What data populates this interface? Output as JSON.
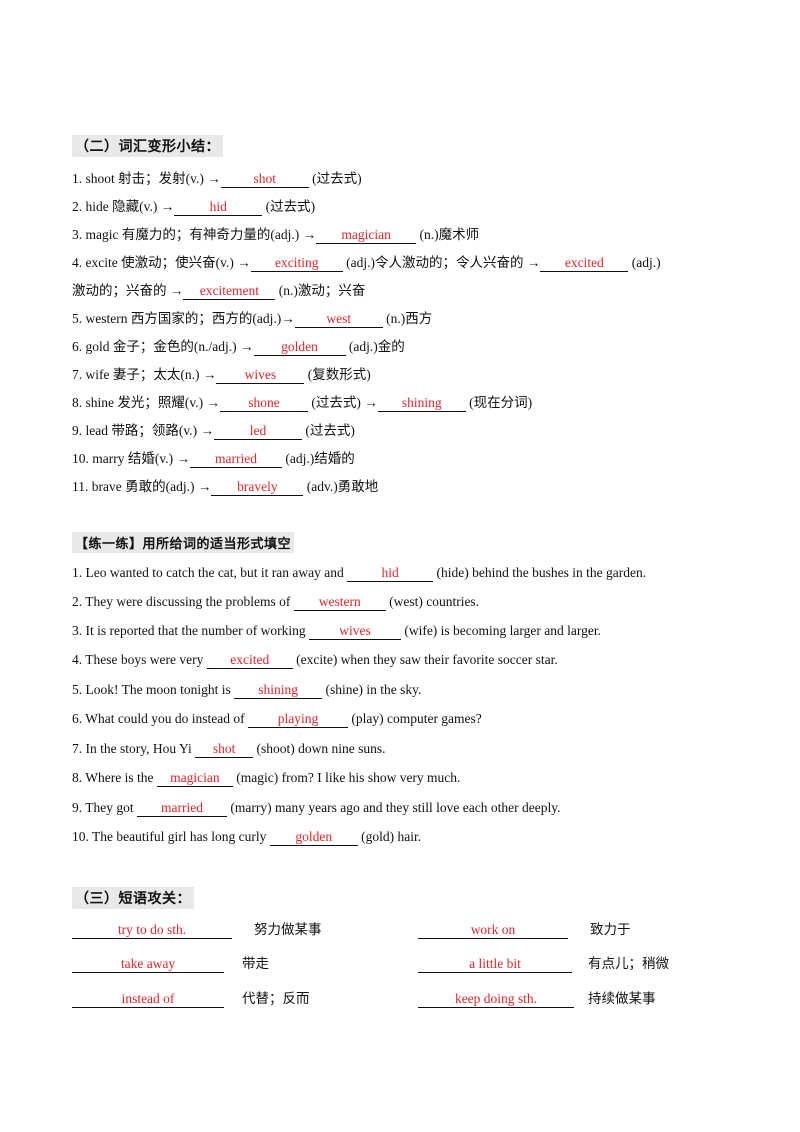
{
  "section2": {
    "title": "（二）词汇变形小结：",
    "items": [
      {
        "pre": "1.   shoot   射击；发射(v.)  →",
        "a1": "shot",
        "mid": "",
        "a2": "",
        "post": "  (过去式)"
      },
      {
        "pre": "2.   hide   隐藏(v.)  →",
        "a1": "hid",
        "mid": "",
        "a2": "",
        "post": "  (过去式)"
      },
      {
        "pre": "3.   magic  有魔力的；有神奇力量的(adj.)  →",
        "a1": "magician",
        "mid": "",
        "a2": "",
        "post": "  (n.)魔术师"
      },
      {
        "pre": "4.   excite  使激动；使兴奋(v.)  →",
        "a1": "exciting",
        "mid": "  (adj.)令人激动的；令人兴奋的  →",
        "a2": "excited",
        "post": "  (adj.)"
      },
      {
        "pre": "激动的；兴奋的  →",
        "a1": "excitement",
        "mid": "",
        "a2": "",
        "post": "  (n.)激动；兴奋"
      },
      {
        "pre": "5.  western  西方国家的；西方的(adj.)→",
        "a1": "west",
        "mid": "",
        "a2": "",
        "post": "  (n.)西方"
      },
      {
        "pre": "6.  gold  金子；金色的(n./adj.)  →",
        "a1": "golden",
        "mid": "",
        "a2": "",
        "post": "  (adj.)金的"
      },
      {
        "pre": "7.  wife  妻子；太太(n.)  →",
        "a1": "wives",
        "mid": "",
        "a2": "",
        "post": "  (复数形式)"
      },
      {
        "pre": "8.  shine  发光；照耀(v.)  →",
        "a1": "shone",
        "mid": "  (过去式)  →",
        "a2": "shining",
        "post": "  (现在分词)"
      },
      {
        "pre": "9.  lead  带路；领路(v.)  →",
        "a1": "led",
        "mid": "",
        "a2": "",
        "post": "  (过去式)"
      },
      {
        "pre": "10.  marry  结婚(v.)  →",
        "a1": "married",
        "mid": "",
        "a2": "",
        "post": "  (adj.)结婚的"
      },
      {
        "pre": "11.  brave  勇敢的(adj.)  →",
        "a1": "bravely",
        "mid": "",
        "a2": "",
        "post": "  (adv.)勇敢地"
      }
    ]
  },
  "practice": {
    "title": "【练一练】用所给词的适当形式填空",
    "items": [
      {
        "pre": "1.  Leo wanted to catch the cat, but it ran away and ",
        "ans": "hid",
        "post": " (hide) behind the bushes in the garden."
      },
      {
        "pre": "2.  They were discussing the problems of ",
        "ans": "western",
        "post": " (west) countries."
      },
      {
        "pre": "3.  It is reported that the number of working  ",
        "ans": "wives",
        "post": " (wife) is becoming larger and larger."
      },
      {
        "pre": "4.  These boys were very  ",
        "ans": "excited",
        "post": "  (excite)  when they saw their favorite soccer star."
      },
      {
        "pre": "5.  Look! The moon tonight is  ",
        "ans": "shining",
        "post": "  (shine) in the sky."
      },
      {
        "pre": "6.  What could you do instead of  ",
        "ans": "playing",
        "post": "  (play) computer games?"
      },
      {
        "pre": "7.  In the story, Hou Yi  ",
        "ans": "shot",
        "post": " (shoot) down nine suns."
      },
      {
        "pre": "8.  Where is the  ",
        "ans": "magician",
        "post": "  (magic)  from? I like his show very much."
      },
      {
        "pre": "9.  They got  ",
        "ans": "married",
        "post": "  (marry) many years ago and they still love each other deeply."
      },
      {
        "pre": "10.  The beautiful girl has long curly  ",
        "ans": "golden",
        "post": "  (gold) hair."
      }
    ]
  },
  "section3": {
    "title": "（三）短语攻关：",
    "left": [
      {
        "ans": "try  to  do  sth.",
        "meaning": "努力做某事"
      },
      {
        "ans": "take  away",
        "meaning": "带走"
      },
      {
        "ans": "instead  of",
        "meaning": "代替；反而"
      }
    ],
    "right": [
      {
        "ans": "work  on",
        "meaning": "致力于"
      },
      {
        "ans": "a  little  bit",
        "meaning": "有点儿；稍微"
      },
      {
        "ans": "keep  doing  sth.",
        "meaning": "持续做某事"
      }
    ]
  },
  "colors": {
    "answer": "#e0262b",
    "title_bg": "#e9e9e9"
  }
}
